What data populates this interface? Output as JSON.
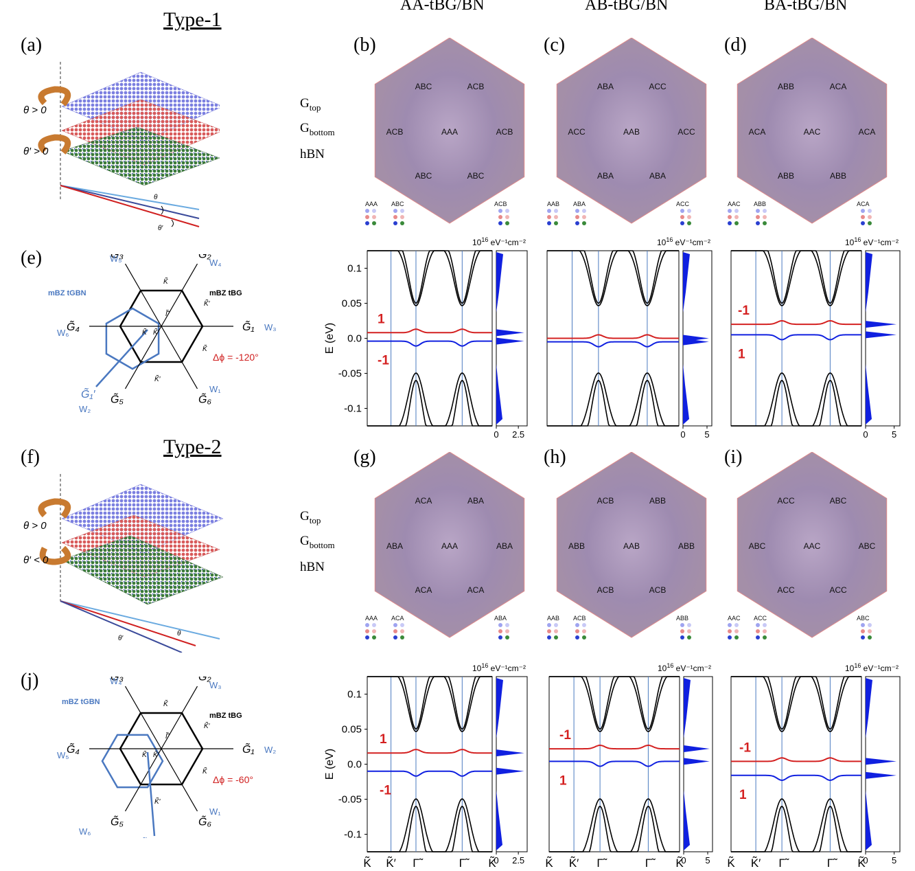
{
  "column_titles": [
    "AA-tBG/BN",
    "AB-tBG/BN",
    "BA-tBG/BN"
  ],
  "type_titles": [
    "Type-1",
    "Type-2"
  ],
  "panel_labels": {
    "a": "(a)",
    "b": "(b)",
    "c": "(c)",
    "d": "(d)",
    "e": "(e)",
    "f": "(f)",
    "g": "(g)",
    "h": "(h)",
    "i": "(i)",
    "j": "(j)"
  },
  "layer_labels": {
    "top": "G",
    "top_sub": "top",
    "bottom": "G",
    "bottom_sub": "bottom",
    "hbn": "hBN"
  },
  "angles_type1": {
    "theta": "θ > 0",
    "theta_prime": "θ′ > 0",
    "t": "θ",
    "tp": "θ′"
  },
  "angles_type2": {
    "theta": "θ > 0",
    "theta_prime": "θ′ < 0",
    "t": "θ",
    "tp": "θ′"
  },
  "bz_type1": {
    "mbz_tgbn": "mBZ tGBN",
    "mbz_tbg": "mBZ tBG",
    "dphi": "Δϕ = -120°",
    "G1": "G̃₁",
    "G2": "G̃₂",
    "G3": "G̃₃",
    "G4": "G̃₄",
    "G5": "G̃₅",
    "G6": "G̃₆",
    "G1p": "G̃₁′",
    "W": [
      "W₁",
      "W₂",
      "W₃",
      "W₄",
      "W₅",
      "W₆"
    ],
    "K": "K̃",
    "Kp": "K̃′",
    "Gamma": "Γ̃"
  },
  "bz_type2": {
    "mbz_tgbn": "mBZ tGBN",
    "mbz_tbg": "mBZ tBG",
    "dphi": "Δϕ = -60°",
    "G1": "G̃₁",
    "G2": "G̃₂",
    "G3": "G̃₃",
    "G4": "G̃₄",
    "G5": "G̃₅",
    "G6": "G̃₆",
    "G1p": "G̃₁′",
    "W": [
      "W₁",
      "W₂",
      "W₃",
      "W₄",
      "W₅",
      "W₆"
    ],
    "K": "K̃",
    "Kp": "K̃′",
    "Gamma": "Γ̃"
  },
  "hexagons": {
    "b": {
      "center": "AAA",
      "labels": [
        "ABC",
        "ACB",
        "ACB",
        "ABC",
        "ABC",
        "ACB"
      ],
      "legend": [
        "AAA",
        "ABC",
        "ACB"
      ]
    },
    "c": {
      "center": "AAB",
      "labels": [
        "ABA",
        "ACC",
        "ACC",
        "ABA",
        "ABA",
        "ACC"
      ],
      "legend": [
        "AAB",
        "ABA",
        "ACC"
      ]
    },
    "d": {
      "center": "AAC",
      "labels": [
        "ABB",
        "ACA",
        "ACA",
        "ABB",
        "ABB",
        "ACA"
      ],
      "legend": [
        "AAC",
        "ABB",
        "ACA"
      ]
    },
    "g": {
      "center": "AAA",
      "labels": [
        "ACA",
        "ABA",
        "ABA",
        "ACA",
        "ACA",
        "ABA"
      ],
      "legend": [
        "AAA",
        "ACA",
        "ABA"
      ]
    },
    "h": {
      "center": "AAB",
      "labels": [
        "ACB",
        "ABB",
        "ABB",
        "ACB",
        "ACB",
        "ABB"
      ],
      "legend": [
        "AAB",
        "ACB",
        "ABB"
      ]
    },
    "i": {
      "center": "AAC",
      "labels": [
        "ACC",
        "ABC",
        "ABC",
        "ACC",
        "ACC",
        "ABC"
      ],
      "legend": [
        "AAC",
        "ACC",
        "ABC"
      ]
    }
  },
  "band_common": {
    "ylabel": "E (eV)",
    "yticks": [
      "0.1",
      "0.05",
      "0.0",
      "-0.05",
      "-0.1"
    ],
    "ytick_values": [
      0.1,
      0.05,
      0.0,
      -0.05,
      -0.1
    ],
    "ylim": [
      -0.125,
      0.125
    ],
    "dos_unit": "10",
    "dos_unit_exp": "16",
    "dos_unit_rest": " eV⁻¹cm⁻²",
    "kpath": [
      "K̃",
      "K̃′",
      "Γ̃",
      "Γ̃",
      "K̃"
    ]
  },
  "chart_data": [
    {
      "type": "line",
      "panel": "AA-tBG/BN Type-1",
      "chern_upper": "1",
      "chern_lower": "-1",
      "flat_upper": 0.008,
      "flat_lower": -0.004,
      "dos_ticks": [
        "0",
        "2.5"
      ],
      "dos_xlim": [
        0,
        3.5
      ]
    },
    {
      "type": "line",
      "panel": "AB-tBG/BN Type-1",
      "chern_upper": "",
      "chern_lower": "",
      "flat_upper": 0.0,
      "flat_lower": -0.005,
      "dos_ticks": [
        "0",
        "5"
      ],
      "dos_xlim": [
        0,
        6
      ]
    },
    {
      "type": "line",
      "panel": "BA-tBG/BN Type-1",
      "chern_upper": "-1",
      "chern_lower": "1",
      "flat_upper": 0.02,
      "flat_lower": 0.005,
      "dos_ticks": [
        "0",
        "5"
      ],
      "dos_xlim": [
        0,
        6
      ]
    },
    {
      "type": "line",
      "panel": "AA-tBG/BN Type-2",
      "chern_upper": "1",
      "chern_lower": "-1",
      "flat_upper": 0.016,
      "flat_lower": -0.01,
      "dos_ticks": [
        "0",
        "2.5"
      ],
      "dos_xlim": [
        0,
        3.5
      ]
    },
    {
      "type": "line",
      "panel": "AB-tBG/BN Type-2",
      "chern_upper": "-1",
      "chern_lower": "1",
      "flat_upper": 0.022,
      "flat_lower": 0.004,
      "dos_ticks": [
        "0",
        "5"
      ],
      "dos_xlim": [
        0,
        6
      ]
    },
    {
      "type": "line",
      "panel": "BA-tBG/BN Type-2",
      "chern_upper": "-1",
      "chern_lower": "1",
      "flat_upper": 0.004,
      "flat_lower": -0.016,
      "dos_ticks": [
        "0",
        "5"
      ],
      "dos_xlim": [
        0,
        6
      ]
    }
  ]
}
